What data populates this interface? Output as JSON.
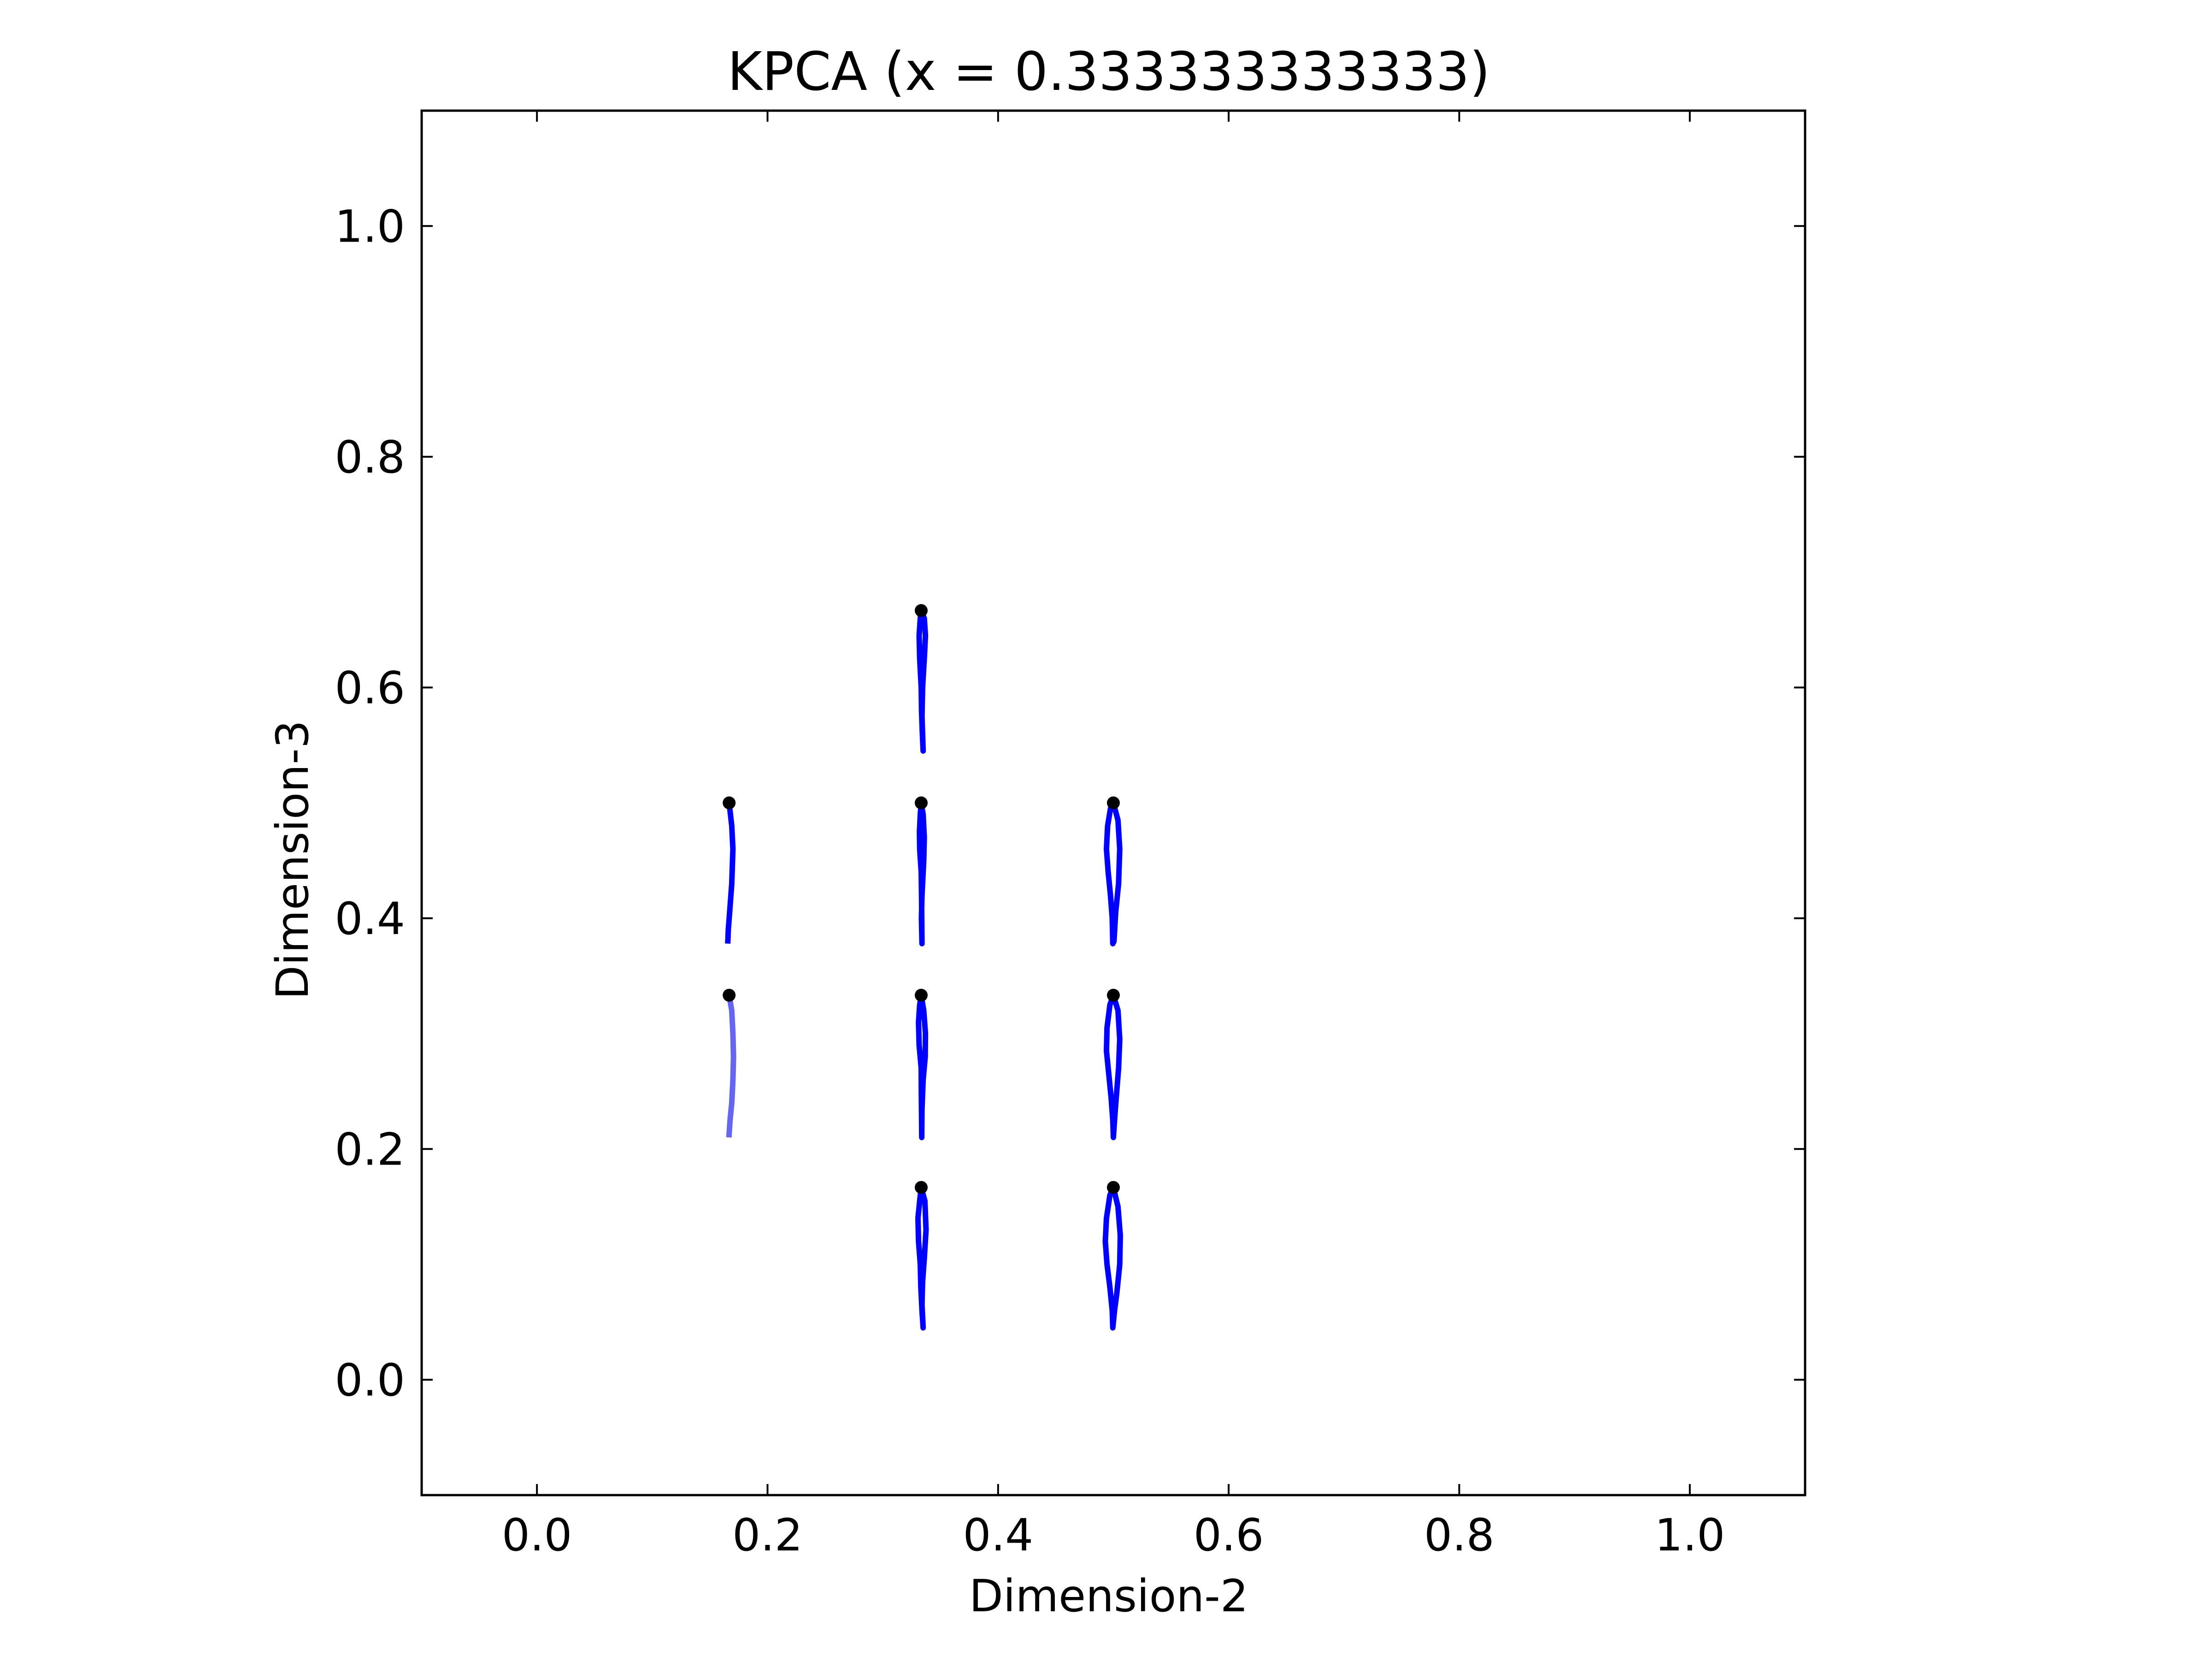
{
  "chart_data": {
    "type": "line",
    "title": "KPCA (x = 0.333333333333)",
    "xlabel": "Dimension-2",
    "ylabel": "Dimension-3",
    "xlim": [
      -0.1,
      1.1
    ],
    "ylim": [
      -0.1,
      1.1
    ],
    "xticks": [
      0.0,
      0.2,
      0.4,
      0.6,
      0.8,
      1.0
    ],
    "yticks": [
      0.0,
      0.2,
      0.4,
      0.6,
      0.8,
      1.0
    ],
    "xtick_labels": [
      "0.0",
      "0.2",
      "0.4",
      "0.6",
      "0.8",
      "1.0"
    ],
    "ytick_labels": [
      "0.0",
      "0.2",
      "0.4",
      "0.6",
      "0.8",
      "1.0"
    ],
    "grid": false,
    "colors": {
      "trace": "#0000ff",
      "trace_faint": "#6666ee",
      "point": "#000000",
      "axes": "#000000"
    },
    "points": [
      {
        "x": 0.1667,
        "y": 0.5
      },
      {
        "x": 0.1667,
        "y": 0.3333
      },
      {
        "x": 0.3333,
        "y": 0.6667
      },
      {
        "x": 0.3333,
        "y": 0.5
      },
      {
        "x": 0.3333,
        "y": 0.3333
      },
      {
        "x": 0.3333,
        "y": 0.1667
      },
      {
        "x": 0.5,
        "y": 0.5
      },
      {
        "x": 0.5,
        "y": 0.3333
      },
      {
        "x": 0.5,
        "y": 0.1667
      }
    ],
    "series": [
      {
        "faint": false,
        "x": [
          0.1667,
          0.169,
          0.17,
          0.169,
          0.1675,
          0.166,
          0.1655
        ],
        "y": [
          0.5,
          0.48,
          0.46,
          0.43,
          0.41,
          0.39,
          0.378
        ]
      },
      {
        "faint": true,
        "x": [
          0.1667,
          0.169,
          0.17,
          0.1705,
          0.17,
          0.169,
          0.1675,
          0.1665
        ],
        "y": [
          0.3333,
          0.32,
          0.3,
          0.28,
          0.26,
          0.24,
          0.225,
          0.21
        ]
      },
      {
        "faint": false,
        "x": [
          0.3333,
          0.336,
          0.337,
          0.336,
          0.3345,
          0.334,
          0.335,
          0.3343,
          0.3336,
          0.3333,
          0.332,
          0.3315,
          0.3325,
          0.3333
        ],
        "y": [
          0.6667,
          0.66,
          0.645,
          0.625,
          0.6,
          0.575,
          0.545,
          0.56,
          0.58,
          0.6,
          0.625,
          0.645,
          0.66,
          0.6667
        ]
      },
      {
        "faint": false,
        "x": [
          0.3333,
          0.335,
          0.336,
          0.3355,
          0.334,
          0.3335,
          0.334,
          0.3338,
          0.3336,
          0.3333,
          0.332,
          0.3318,
          0.3325,
          0.3333
        ],
        "y": [
          0.5,
          0.49,
          0.47,
          0.45,
          0.42,
          0.4,
          0.378,
          0.4,
          0.42,
          0.44,
          0.46,
          0.475,
          0.49,
          0.5
        ]
      },
      {
        "faint": false,
        "x": [
          0.3333,
          0.3355,
          0.337,
          0.3368,
          0.335,
          0.334,
          0.3338,
          0.3336,
          0.3334,
          0.3333,
          0.3315,
          0.331,
          0.332,
          0.3333
        ],
        "y": [
          0.3333,
          0.32,
          0.3,
          0.28,
          0.26,
          0.235,
          0.21,
          0.23,
          0.25,
          0.27,
          0.29,
          0.31,
          0.325,
          0.3333
        ]
      },
      {
        "faint": false,
        "x": [
          0.3333,
          0.3365,
          0.3375,
          0.336,
          0.3345,
          0.334,
          0.335,
          0.334,
          0.333,
          0.3325,
          0.331,
          0.3305,
          0.332,
          0.3333
        ],
        "y": [
          0.1667,
          0.155,
          0.13,
          0.105,
          0.085,
          0.065,
          0.045,
          0.06,
          0.08,
          0.1,
          0.12,
          0.14,
          0.155,
          0.1667
        ]
      },
      {
        "faint": false,
        "x": [
          0.5,
          0.504,
          0.5055,
          0.5045,
          0.502,
          0.5005,
          0.4995,
          0.499,
          0.4975,
          0.4955,
          0.494,
          0.495,
          0.4975,
          0.5
        ],
        "y": [
          0.5,
          0.485,
          0.46,
          0.43,
          0.405,
          0.38,
          0.378,
          0.4,
          0.42,
          0.44,
          0.46,
          0.48,
          0.495,
          0.5
        ]
      },
      {
        "faint": false,
        "x": [
          0.5,
          0.504,
          0.5055,
          0.5045,
          0.5025,
          0.501,
          0.5,
          0.4995,
          0.498,
          0.496,
          0.494,
          0.4945,
          0.497,
          0.5
        ],
        "y": [
          0.3333,
          0.32,
          0.295,
          0.27,
          0.245,
          0.225,
          0.21,
          0.225,
          0.245,
          0.265,
          0.285,
          0.305,
          0.325,
          0.3333
        ]
      },
      {
        "faint": false,
        "x": [
          0.5,
          0.504,
          0.506,
          0.5055,
          0.503,
          0.501,
          0.4995,
          0.499,
          0.497,
          0.4945,
          0.493,
          0.494,
          0.497,
          0.5
        ],
        "y": [
          0.1667,
          0.15,
          0.125,
          0.1,
          0.075,
          0.06,
          0.045,
          0.06,
          0.08,
          0.1,
          0.12,
          0.14,
          0.16,
          0.1667
        ]
      }
    ]
  }
}
